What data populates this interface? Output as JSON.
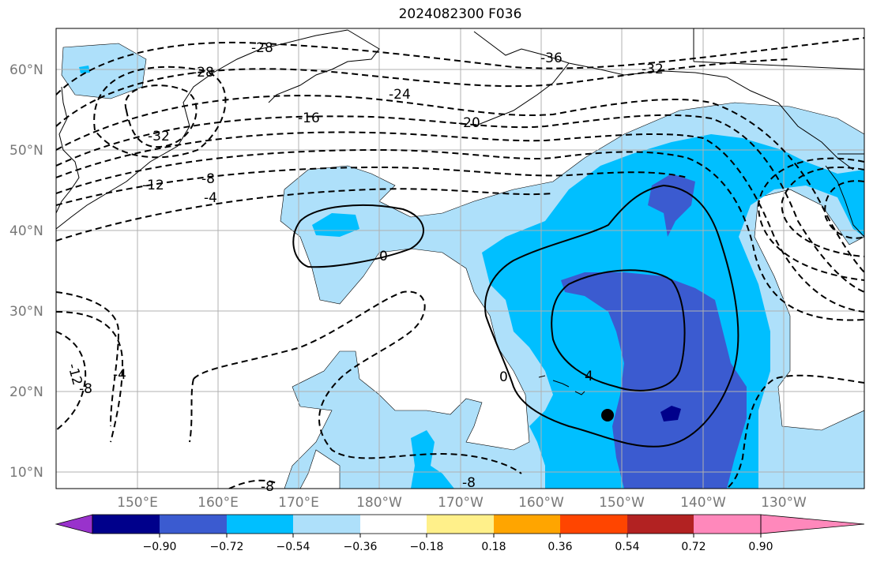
{
  "title": "2024082300 F036",
  "lat_labels": [
    "60°N",
    "50°N",
    "40°N",
    "30°N",
    "20°N",
    "10°N"
  ],
  "lon_labels": [
    "150°E",
    "160°E",
    "170°E",
    "180°W",
    "170°W",
    "160°W",
    "150°W",
    "140°W",
    "130°W"
  ],
  "colorbar": {
    "tick_labels": [
      "−0.90",
      "−0.72",
      "−0.54",
      "−0.36",
      "−0.18",
      "0.18",
      "0.36",
      "0.54",
      "0.72",
      "0.90"
    ],
    "colors": [
      "#9932cc",
      "#00008b",
      "#3b5bd0",
      "#00bfff",
      "#aee0fa",
      "#ffffff",
      "#fff08a",
      "#ffa500",
      "#ff4500",
      "#b22222",
      "#ff88bb"
    ]
  },
  "contour_labels": {
    "c1": "-28",
    "c2": "-28",
    "c3": "-36",
    "c4": "-32",
    "c5": "-24",
    "c6": "-32",
    "c7": "-16",
    "c8": "-20",
    "c9": "-12",
    "c10": "-8",
    "c11": "-4",
    "c12": "0",
    "c13": "0",
    "c14": "4",
    "c15": "-12",
    "c16": "-8",
    "c17": "-4",
    "c18": "-8",
    "c19": "-8"
  },
  "marker": "storm-center-dot"
}
